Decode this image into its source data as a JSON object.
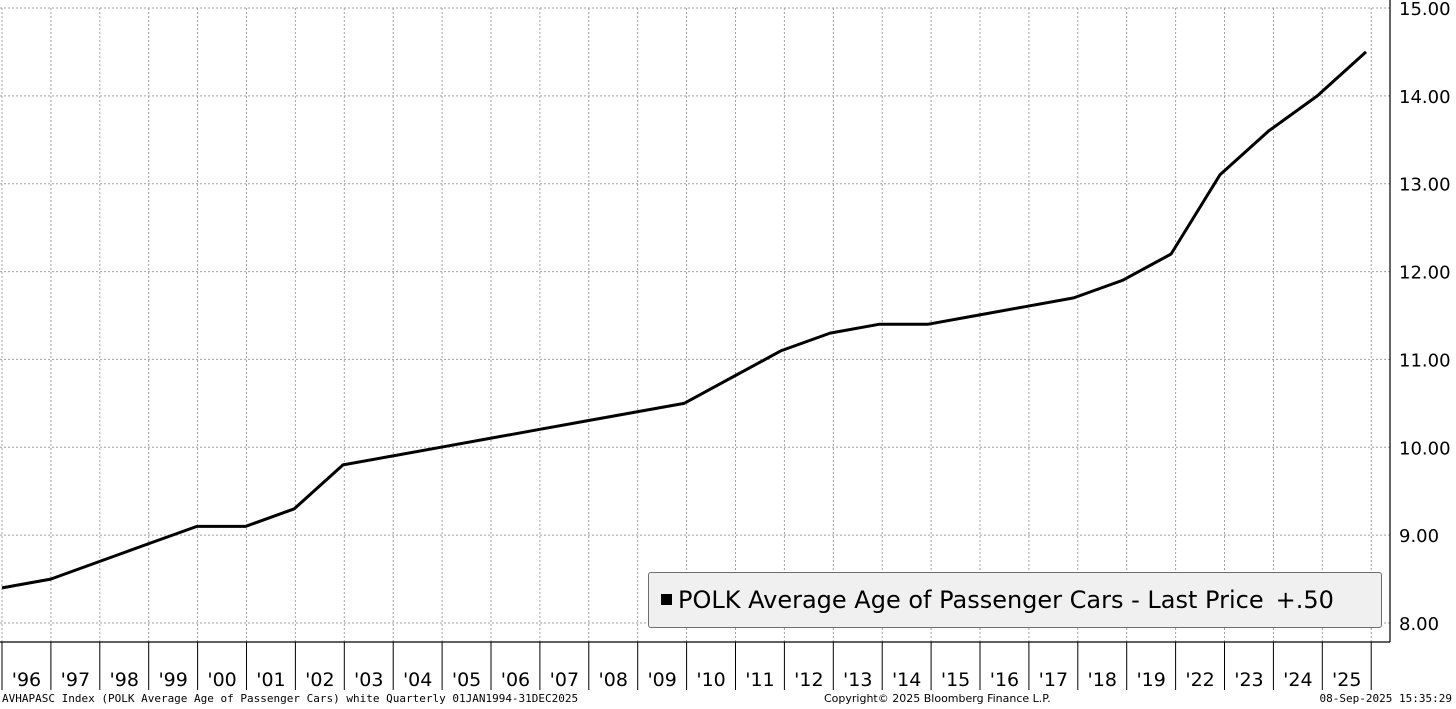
{
  "chart_data": {
    "type": "line",
    "title": "",
    "xlabel": "",
    "ylabel": "",
    "ylim": [
      8.0,
      15.0
    ],
    "y_ticks": [
      "8.00",
      "9.00",
      "10.00",
      "11.00",
      "12.00",
      "13.00",
      "14.00",
      "15.00"
    ],
    "x_tick_labels": [
      "'96",
      "'97",
      "'98",
      "'99",
      "'00",
      "'01",
      "'02",
      "'03",
      "'04",
      "'05",
      "'06",
      "'07",
      "'08",
      "'09",
      "'10",
      "'11",
      "'12",
      "'13",
      "'14",
      "'15",
      "'16",
      "'17",
      "'18",
      "'19",
      "'22",
      "'23",
      "'24",
      "'25"
    ],
    "grid": true,
    "series": [
      {
        "values": [
          8.4,
          8.5,
          8.7,
          8.9,
          9.1,
          9.1,
          9.3,
          9.8,
          9.9,
          10.0,
          10.1,
          10.2,
          10.3,
          10.4,
          10.5,
          10.8,
          11.1,
          11.3,
          11.4,
          11.4,
          11.5,
          11.6,
          11.7,
          11.9,
          12.2,
          13.1,
          13.6,
          14.0,
          14.5
        ]
      }
    ],
    "legend": {
      "label": "POLK Average Age of Passenger Cars - Last Price",
      "value": "+.50",
      "placement": "bottom-right"
    }
  },
  "footer": {
    "left": "AVHAPASC Index (POLK Average Age of Passenger Cars) white  Quarterly 01JAN1994-31DEC2025",
    "center": "Copyright© 2025 Bloomberg Finance L.P.",
    "right": "08-Sep-2025 15:35:29"
  }
}
